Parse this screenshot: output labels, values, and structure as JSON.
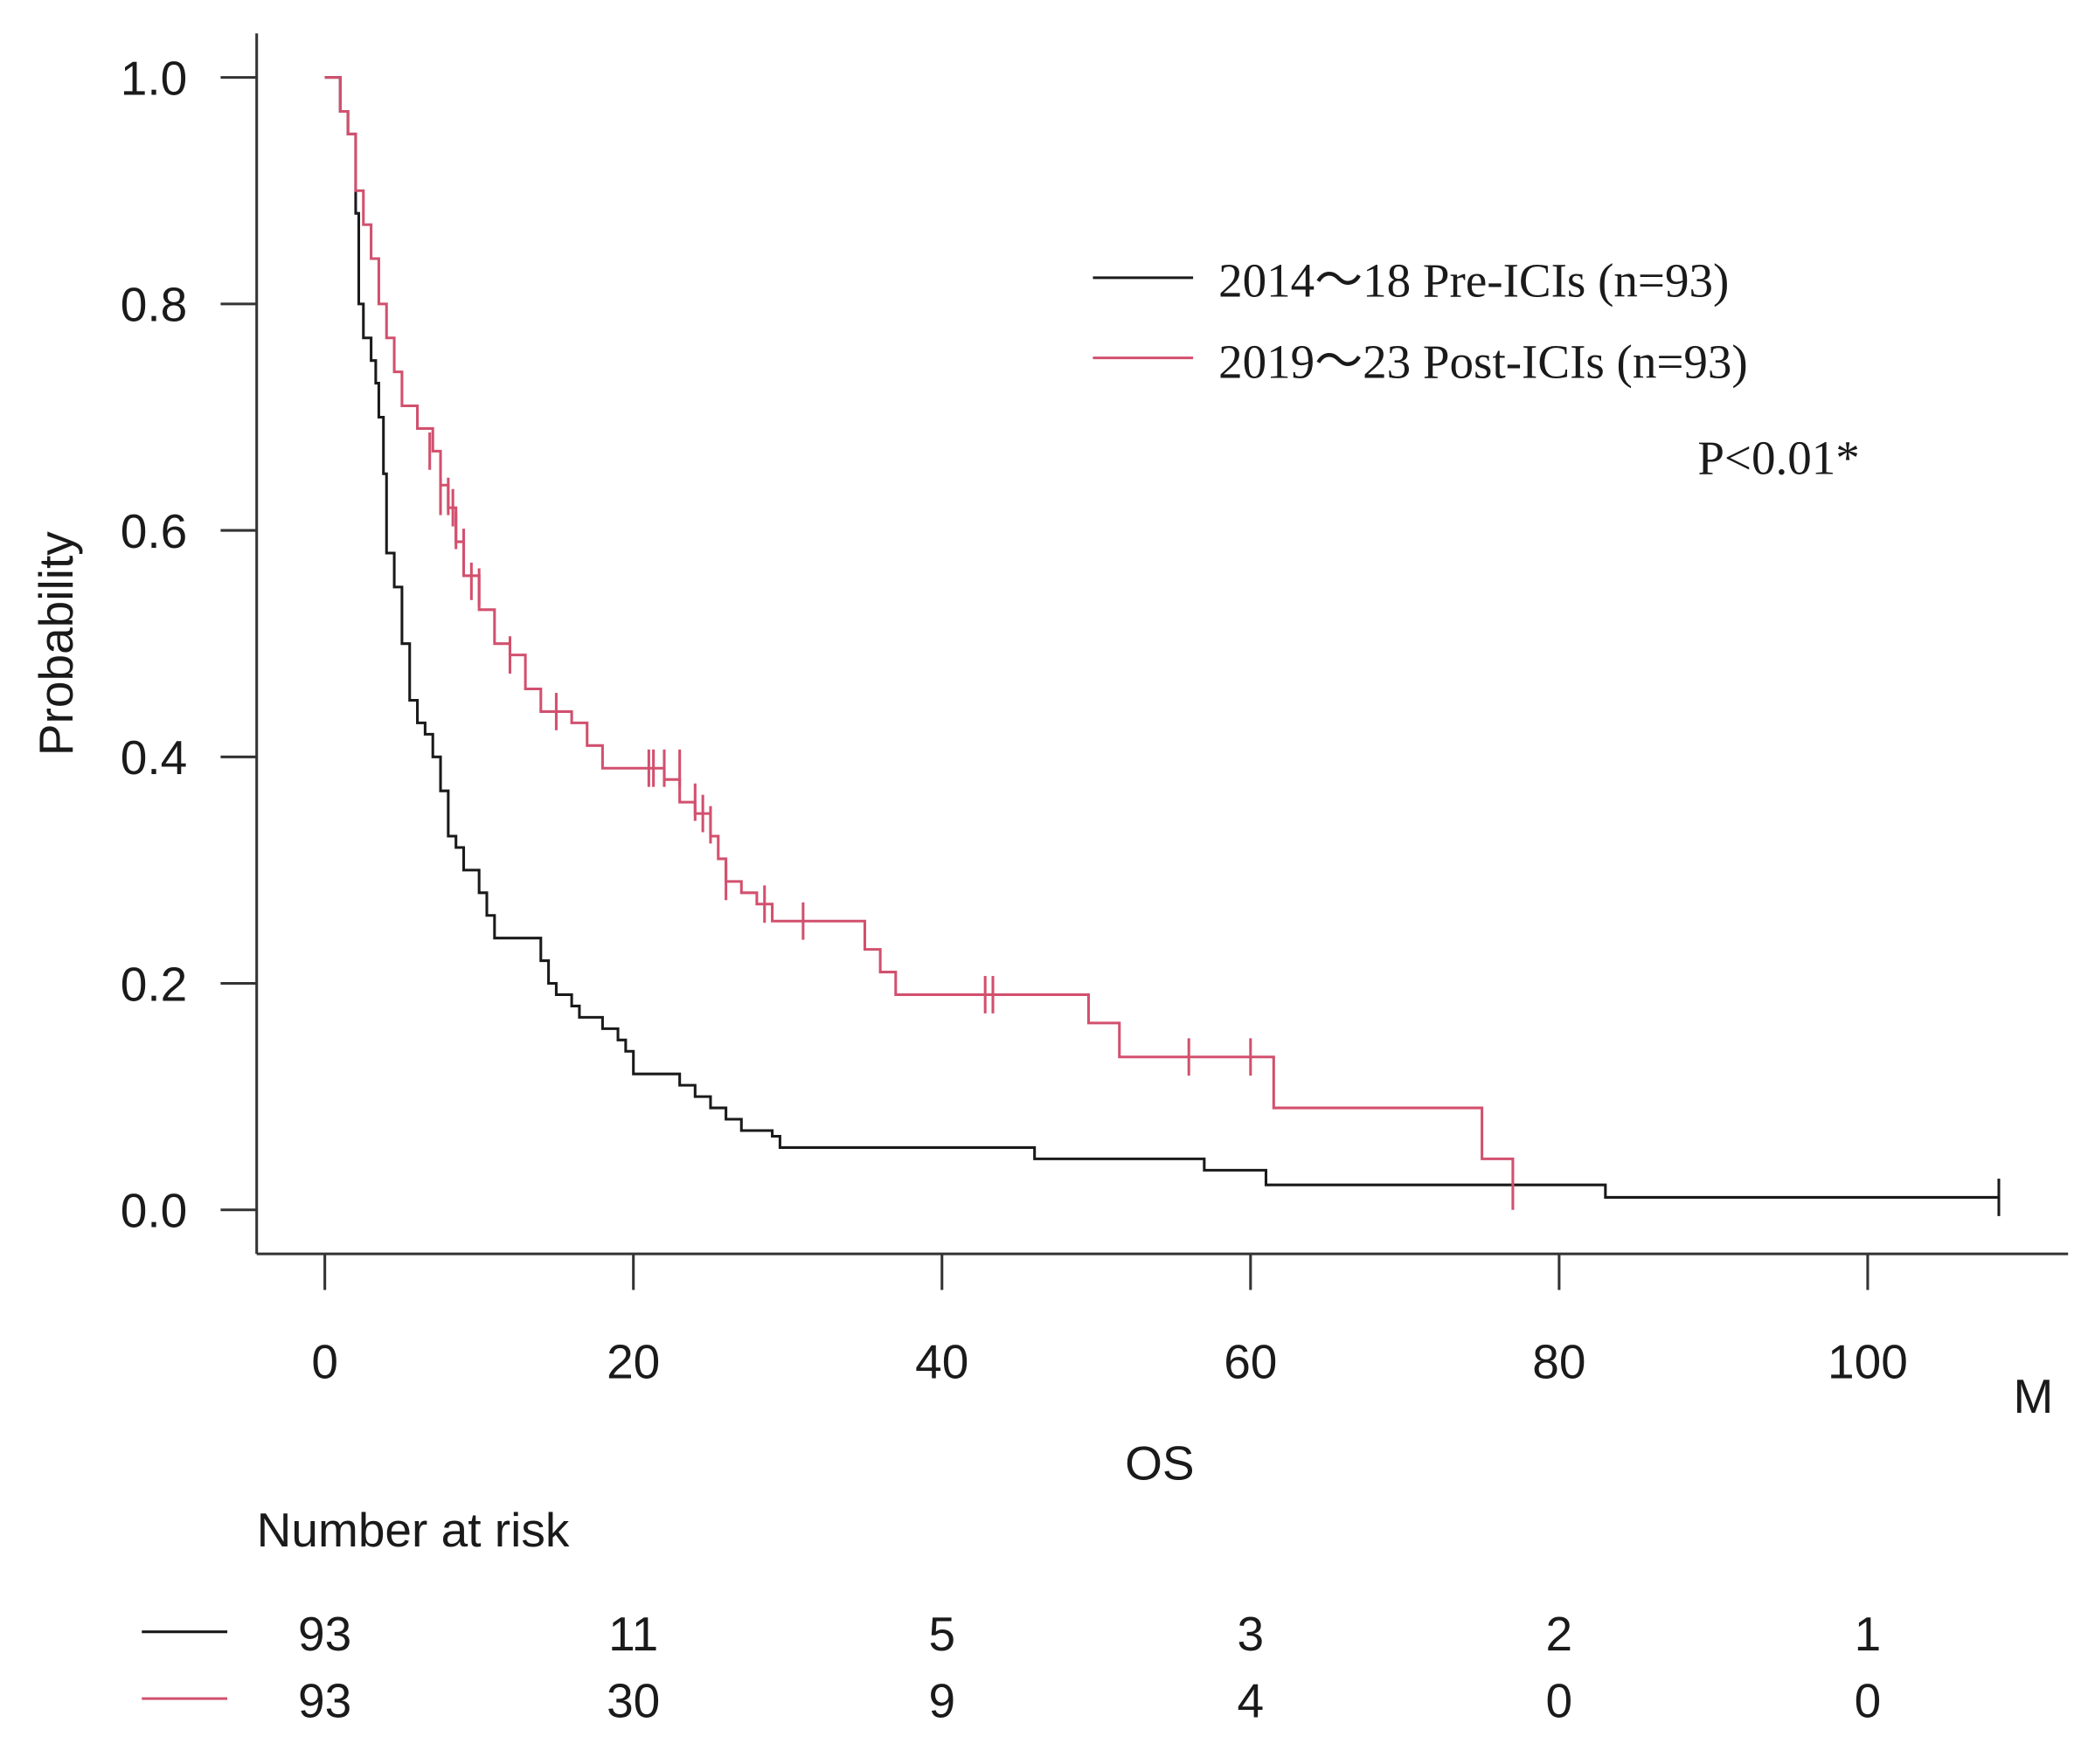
{
  "chart_data": {
    "type": "line",
    "subtype": "kaplan-meier",
    "xlabel": "OS",
    "x_unit_label": "M",
    "ylabel": "Probability",
    "xlim": [
      0,
      110
    ],
    "ylim": [
      0,
      1
    ],
    "x_ticks": [
      0,
      20,
      40,
      60,
      80,
      100
    ],
    "x_tick_labels": [
      "0",
      "20",
      "40",
      "60",
      "80",
      "100"
    ],
    "y_ticks": [
      0,
      0.2,
      0.4,
      0.6,
      0.8,
      1.0
    ],
    "y_tick_labels": [
      "0.0",
      "0.2",
      "0.4",
      "0.6",
      "0.8",
      "1.0"
    ],
    "grid": false,
    "legend_position": "top-right",
    "annotation": "P<0.01*",
    "series": [
      {
        "name": "2014〜18 Pre-ICIs (n=93)",
        "color": "#1a1a1a",
        "steps": [
          [
            0,
            1.0
          ],
          [
            1,
            0.97
          ],
          [
            1.5,
            0.95
          ],
          [
            2,
            0.88
          ],
          [
            2.2,
            0.8
          ],
          [
            2.5,
            0.77
          ],
          [
            3,
            0.75
          ],
          [
            3.3,
            0.73
          ],
          [
            3.5,
            0.7
          ],
          [
            3.8,
            0.65
          ],
          [
            4,
            0.58
          ],
          [
            4.5,
            0.55
          ],
          [
            5,
            0.5
          ],
          [
            5.5,
            0.45
          ],
          [
            6,
            0.43
          ],
          [
            6.5,
            0.42
          ],
          [
            7,
            0.4
          ],
          [
            7.5,
            0.37
          ],
          [
            8,
            0.33
          ],
          [
            8.5,
            0.32
          ],
          [
            9,
            0.3
          ],
          [
            10,
            0.28
          ],
          [
            10.5,
            0.26
          ],
          [
            11,
            0.24
          ],
          [
            14,
            0.22
          ],
          [
            14.5,
            0.2
          ],
          [
            15,
            0.19
          ],
          [
            16,
            0.18
          ],
          [
            16.5,
            0.17
          ],
          [
            18,
            0.16
          ],
          [
            19,
            0.15
          ],
          [
            19.5,
            0.14
          ],
          [
            20,
            0.12
          ],
          [
            23,
            0.11
          ],
          [
            24,
            0.1
          ],
          [
            25,
            0.09
          ],
          [
            26,
            0.08
          ],
          [
            27,
            0.07
          ],
          [
            29,
            0.065
          ],
          [
            29.5,
            0.055
          ],
          [
            46,
            0.045
          ],
          [
            57,
            0.035
          ],
          [
            61,
            0.022
          ],
          [
            83,
            0.011
          ]
        ],
        "end": 108.5,
        "censored": [
          [
            108.5,
            0.011
          ]
        ]
      },
      {
        "name": "2019〜23 Post-ICIs (n=93)",
        "color": "#d2506e",
        "steps": [
          [
            0,
            1.0
          ],
          [
            1,
            0.97
          ],
          [
            1.5,
            0.95
          ],
          [
            2,
            0.9
          ],
          [
            2.5,
            0.87
          ],
          [
            3,
            0.84
          ],
          [
            3.5,
            0.8
          ],
          [
            4,
            0.77
          ],
          [
            4.5,
            0.74
          ],
          [
            5,
            0.71
          ],
          [
            6,
            0.69
          ],
          [
            7,
            0.67
          ],
          [
            7.5,
            0.64
          ],
          [
            8,
            0.62
          ],
          [
            8.5,
            0.59
          ],
          [
            9,
            0.56
          ],
          [
            10,
            0.53
          ],
          [
            11,
            0.5
          ],
          [
            12,
            0.49
          ],
          [
            13,
            0.46
          ],
          [
            14,
            0.44
          ],
          [
            16,
            0.43
          ],
          [
            17,
            0.41
          ],
          [
            18,
            0.39
          ],
          [
            22,
            0.38
          ],
          [
            23,
            0.36
          ],
          [
            24,
            0.35
          ],
          [
            25,
            0.33
          ],
          [
            25.5,
            0.31
          ],
          [
            26,
            0.29
          ],
          [
            27,
            0.28
          ],
          [
            28,
            0.27
          ],
          [
            29,
            0.255
          ],
          [
            35,
            0.23
          ],
          [
            36,
            0.21
          ],
          [
            37,
            0.19
          ],
          [
            49.5,
            0.165
          ],
          [
            51.5,
            0.135
          ],
          [
            61.5,
            0.09
          ],
          [
            75,
            0.045
          ],
          [
            77,
            0.0
          ]
        ],
        "end": 77,
        "censored": [
          [
            6.8,
            0.67
          ],
          [
            7.5,
            0.63
          ],
          [
            8,
            0.63
          ],
          [
            8.3,
            0.62
          ],
          [
            8.5,
            0.6
          ],
          [
            9,
            0.585
          ],
          [
            9.5,
            0.555
          ],
          [
            10,
            0.55
          ],
          [
            12,
            0.49
          ],
          [
            15,
            0.44
          ],
          [
            21,
            0.39
          ],
          [
            21.3,
            0.39
          ],
          [
            22,
            0.39
          ],
          [
            23,
            0.39
          ],
          [
            24,
            0.36
          ],
          [
            24.5,
            0.35
          ],
          [
            25,
            0.34
          ],
          [
            26,
            0.29
          ],
          [
            28.5,
            0.27
          ],
          [
            31,
            0.255
          ],
          [
            42.8,
            0.19
          ],
          [
            43.3,
            0.19
          ],
          [
            56,
            0.135
          ],
          [
            60,
            0.135
          ]
        ]
      }
    ],
    "risk_table": {
      "title": "Number at risk",
      "times": [
        0,
        20,
        40,
        60,
        80,
        100
      ],
      "rows": [
        {
          "color": "#1a1a1a",
          "values": [
            "93",
            "11",
            "5",
            "3",
            "2",
            "1"
          ]
        },
        {
          "color": "#d2506e",
          "values": [
            "93",
            "30",
            "9",
            "4",
            "0",
            "0"
          ]
        }
      ]
    }
  }
}
